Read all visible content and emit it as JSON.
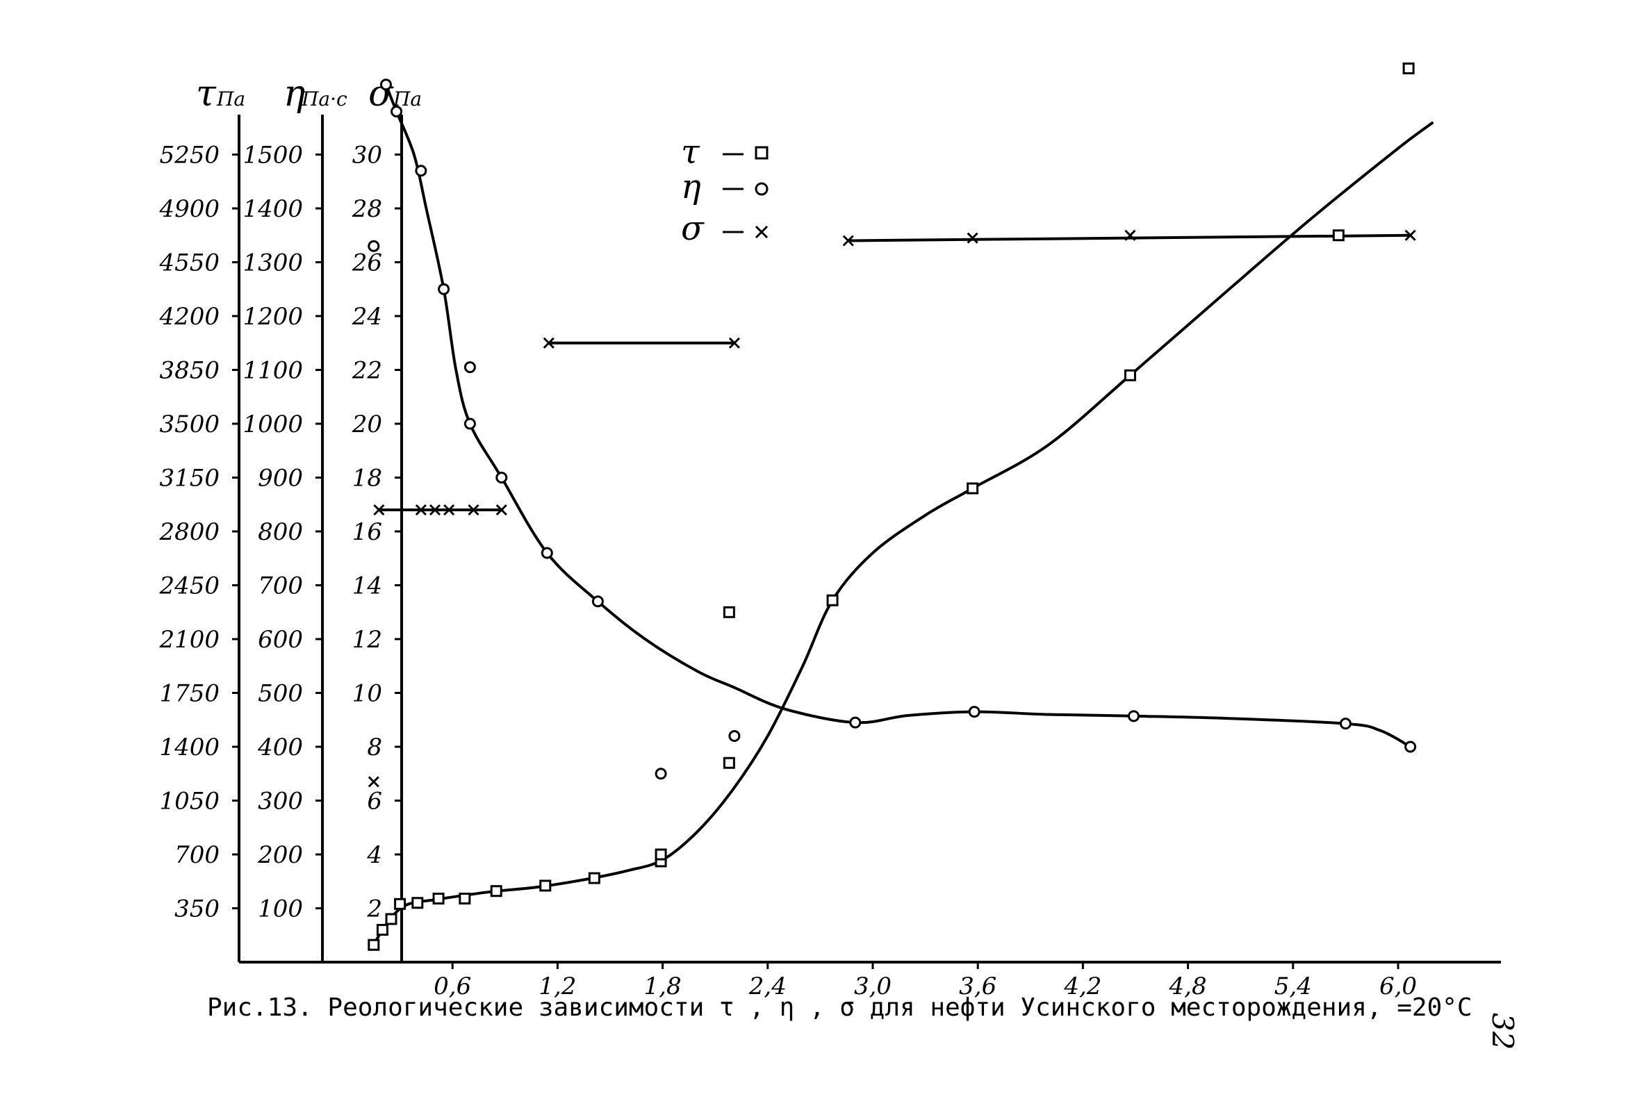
{
  "chart_data": {
    "type": "line",
    "x_ticks": [
      "0,6",
      "1,2",
      "1,8",
      "2,4",
      "3,0",
      "3,6",
      "4,2",
      "4,8",
      "5,4",
      "6,0"
    ],
    "xlim": [
      0.0,
      6.2
    ],
    "axes": [
      {
        "title": "τ",
        "unit": "Па",
        "ticks": [
          "350",
          "700",
          "1050",
          "1400",
          "1750",
          "2100",
          "2450",
          "2800",
          "3150",
          "3500",
          "3850",
          "4200",
          "4550",
          "4900",
          "5250"
        ],
        "ylim": [
          0,
          5600
        ]
      },
      {
        "title": "η",
        "unit": "Па·с",
        "ticks": [
          "100",
          "200",
          "300",
          "400",
          "500",
          "600",
          "700",
          "800",
          "900",
          "1000",
          "1100",
          "1200",
          "1300",
          "1400",
          "1500"
        ],
        "ylim": [
          0,
          1600
        ]
      },
      {
        "title": "σ",
        "unit": "Па",
        "ticks": [
          "2",
          "4",
          "6",
          "8",
          "10",
          "12",
          "14",
          "16",
          "18",
          "20",
          "22",
          "24",
          "26",
          "28",
          "30"
        ],
        "ylim": [
          0,
          32
        ]
      }
    ],
    "legend": [
      {
        "symbol": "τ",
        "marker": "□"
      },
      {
        "symbol": "η",
        "marker": "o"
      },
      {
        "symbol": "σ",
        "marker": "×"
      }
    ],
    "series": [
      {
        "marker": "square",
        "axis": 0,
        "points": [
          [
            0.15,
            112
          ],
          [
            0.2,
            210
          ],
          [
            0.25,
            280
          ],
          [
            0.3,
            378
          ],
          [
            0.4,
            385
          ],
          [
            0.52,
            413
          ],
          [
            0.67,
            413
          ],
          [
            0.85,
            462
          ],
          [
            1.13,
            497
          ],
          [
            1.41,
            546
          ],
          [
            1.79,
            655
          ],
          [
            1.79,
            700
          ],
          [
            2.18,
            1295
          ],
          [
            2.18,
            2275
          ],
          [
            2.77,
            2352
          ],
          [
            3.57,
            3080
          ],
          [
            4.47,
            3815
          ],
          [
            5.66,
            4725
          ],
          [
            6.06,
            5810
          ]
        ],
        "curve": [
          [
            0.15,
            112
          ],
          [
            0.2,
            210
          ],
          [
            0.27,
            315
          ],
          [
            0.35,
            378
          ],
          [
            0.5,
            406
          ],
          [
            0.8,
            455
          ],
          [
            1.1,
            490
          ],
          [
            1.4,
            546
          ],
          [
            1.6,
            595
          ],
          [
            1.8,
            665
          ],
          [
            2.0,
            850
          ],
          [
            2.2,
            1120
          ],
          [
            2.4,
            1470
          ],
          [
            2.6,
            1925
          ],
          [
            2.77,
            2352
          ],
          [
            3.0,
            2660
          ],
          [
            3.3,
            2905
          ],
          [
            3.57,
            3080
          ],
          [
            4.0,
            3360
          ],
          [
            4.47,
            3815
          ],
          [
            5.0,
            4340
          ],
          [
            5.5,
            4830
          ],
          [
            6.0,
            5290
          ],
          [
            6.2,
            5460
          ]
        ]
      },
      {
        "marker": "circle",
        "axis": 1,
        "points": [
          [
            0.15,
            1330
          ],
          [
            0.22,
            1630
          ],
          [
            0.28,
            1580
          ],
          [
            0.42,
            1470
          ],
          [
            0.55,
            1250
          ],
          [
            0.7,
            1105
          ],
          [
            0.7,
            1000
          ],
          [
            0.88,
            900
          ],
          [
            1.14,
            760
          ],
          [
            1.43,
            670
          ],
          [
            1.79,
            350
          ],
          [
            2.21,
            420
          ],
          [
            2.9,
            445
          ],
          [
            3.58,
            465
          ],
          [
            4.49,
            457
          ],
          [
            5.7,
            443
          ],
          [
            6.07,
            400
          ]
        ],
        "curve": [
          [
            0.22,
            1630
          ],
          [
            0.28,
            1580
          ],
          [
            0.38,
            1500
          ],
          [
            0.45,
            1400
          ],
          [
            0.55,
            1250
          ],
          [
            0.62,
            1100
          ],
          [
            0.7,
            1000
          ],
          [
            0.88,
            900
          ],
          [
            1.14,
            760
          ],
          [
            1.43,
            670
          ],
          [
            1.7,
            600
          ],
          [
            2.0,
            540
          ],
          [
            2.21,
            510
          ],
          [
            2.5,
            470
          ],
          [
            2.9,
            445
          ],
          [
            3.2,
            458
          ],
          [
            3.58,
            465
          ],
          [
            4.0,
            460
          ],
          [
            4.49,
            457
          ],
          [
            5.0,
            453
          ],
          [
            5.7,
            443
          ],
          [
            5.9,
            430
          ],
          [
            6.07,
            400
          ]
        ]
      },
      {
        "marker": "cross",
        "axis": 2,
        "points": [
          [
            0.15,
            6.7
          ],
          [
            0.18,
            16.8
          ],
          [
            0.42,
            16.8
          ],
          [
            0.5,
            16.8
          ],
          [
            0.58,
            16.8
          ],
          [
            0.72,
            16.8
          ],
          [
            0.88,
            16.8
          ],
          [
            1.15,
            23.0
          ],
          [
            2.21,
            23.0
          ],
          [
            2.86,
            26.8
          ],
          [
            3.57,
            26.9
          ],
          [
            4.47,
            27.0
          ],
          [
            6.07,
            27.0
          ]
        ],
        "segments": [
          [
            [
              0.18,
              16.8
            ],
            [
              0.88,
              16.8
            ]
          ],
          [
            [
              1.15,
              23.0
            ],
            [
              2.21,
              23.0
            ]
          ],
          [
            [
              2.86,
              26.8
            ],
            [
              6.07,
              27.0
            ]
          ]
        ]
      }
    ]
  },
  "caption": "Рис.13. Реологические зависимости τ , η , σ для нефти Усинского месторождения,    =20°С",
  "page_number": "32"
}
